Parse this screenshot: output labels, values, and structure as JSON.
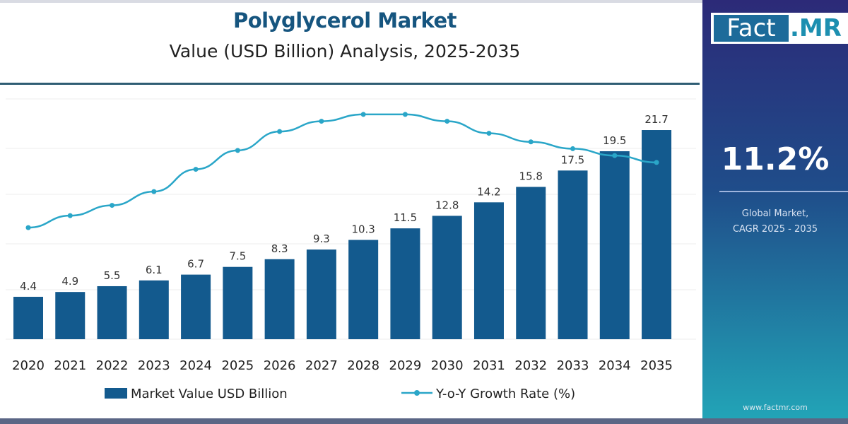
{
  "header": {
    "title": "Polyglycerol Market",
    "subtitle": "Value (USD Billion) Analysis, 2025-2035"
  },
  "side_panel": {
    "logo_text": "Fact.MR",
    "logo_part1": "Fact",
    "logo_part2": ".MR",
    "cagr_value": "11.2%",
    "cagr_label_line1": "Global Market,",
    "cagr_label_line2": "CAGR 2025 - 2035",
    "website": "www.factmr.com"
  },
  "colors": {
    "bar": "#135a8e",
    "line": "#2aa6c8",
    "title": "#16557f"
  },
  "chart_data": {
    "type": "bar+line",
    "categories": [
      "2020",
      "2021",
      "2022",
      "2023",
      "2024",
      "2025",
      "2026",
      "2027",
      "2028",
      "2029",
      "2030",
      "2031",
      "2032",
      "2033",
      "2034",
      "2035"
    ],
    "series": [
      {
        "name": "Market Value USD Billion",
        "type": "bar",
        "values": [
          4.4,
          4.9,
          5.5,
          6.1,
          6.7,
          7.5,
          8.3,
          9.3,
          10.3,
          11.5,
          12.8,
          14.2,
          15.8,
          17.5,
          19.5,
          21.7
        ],
        "labels": [
          "4.4",
          "4.9",
          "5.5",
          "6.1",
          "6.7",
          "7.5",
          "8.3",
          "9.3",
          "10.3",
          "11.5",
          "12.8",
          "14.2",
          "15.8",
          "17.5",
          "19.5",
          "21.7"
        ]
      },
      {
        "name": "Y-o-Y Growth Rate (%)",
        "type": "line",
        "values": [
          6.5,
          7.2,
          7.8,
          8.6,
          9.9,
          11.0,
          12.1,
          12.7,
          13.1,
          13.1,
          12.7,
          12.0,
          11.5,
          11.1,
          10.7,
          10.3
        ]
      }
    ],
    "ylim": [
      0,
      22
    ],
    "grid": true,
    "legend": "bottom"
  }
}
